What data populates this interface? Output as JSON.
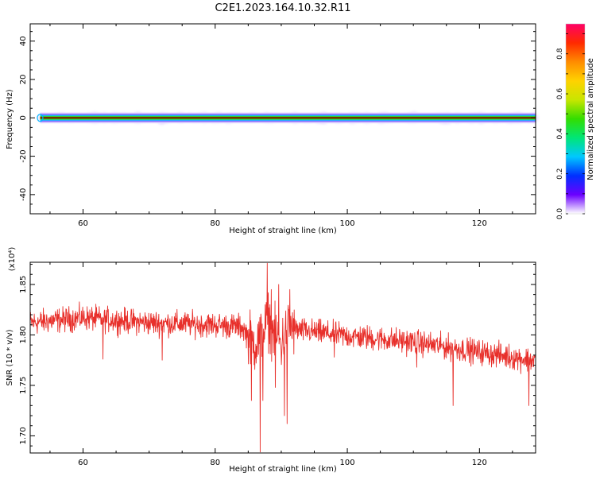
{
  "title": "C2E1.2023.164.10.32.R11",
  "colors": {
    "snr_line": "#e8302b",
    "axis": "#000000",
    "colormap": [
      "#ffffff",
      "#6b00ff",
      "#0030ff",
      "#00c8ff",
      "#00e676",
      "#33dd00",
      "#c8e600",
      "#ffd200",
      "#ff8c00",
      "#ff2a00",
      "#ff0066"
    ]
  },
  "chart_data": [
    {
      "type": "heatmap",
      "name": "spectrogram",
      "xlabel": "Height of straight line (km)",
      "ylabel": "Frequency (Hz)",
      "xlim": [
        52,
        128.5
      ],
      "ylim": [
        -50,
        49
      ],
      "xticks": [
        60,
        80,
        100,
        120
      ],
      "yticks": [
        -40,
        -20,
        0,
        20,
        40
      ],
      "x_start": 53.5,
      "x_end": 128.5,
      "ridge_frequency": 0,
      "colorbar": {
        "label": "Normalized spectral amplitude",
        "range": [
          0,
          0.95
        ],
        "ticks": [
          "0.0",
          "0.2",
          "0.4",
          "0.6",
          "0.8"
        ],
        "tick_values": [
          0.0,
          0.2,
          0.4,
          0.6,
          0.8
        ]
      }
    },
    {
      "type": "line",
      "name": "snr",
      "xlabel": "Height of straight line (km)",
      "ylabel": "SNR (10 * v/v)",
      "y_multiplier": "(x10⁴)",
      "xlim": [
        52,
        128.5
      ],
      "ylim": [
        1.683,
        1.872
      ],
      "xticks": [
        60,
        80,
        100,
        120
      ],
      "yticks": [
        "1.70",
        "1.75",
        "1.80",
        "1.85"
      ],
      "ytick_values": [
        1.7,
        1.75,
        1.8,
        1.85
      ],
      "trend": {
        "x": [
          52,
          60,
          70,
          80,
          84,
          86,
          87,
          88,
          89,
          90,
          91,
          92,
          95,
          100,
          110,
          120,
          128
        ],
        "y": [
          1.812,
          1.817,
          1.812,
          1.81,
          1.808,
          1.79,
          1.8,
          1.815,
          1.8,
          1.79,
          1.81,
          1.805,
          1.803,
          1.799,
          1.793,
          1.783,
          1.775
        ]
      },
      "noise_amplitude": 0.012,
      "spikes": [
        {
          "x": 86.8,
          "y": 1.684
        },
        {
          "x": 87.2,
          "y": 1.735
        },
        {
          "x": 87.9,
          "y": 1.871
        },
        {
          "x": 88.5,
          "y": 1.845
        },
        {
          "x": 89.1,
          "y": 1.748
        },
        {
          "x": 89.6,
          "y": 1.85
        },
        {
          "x": 90.5,
          "y": 1.72
        },
        {
          "x": 90.9,
          "y": 1.712
        },
        {
          "x": 91.3,
          "y": 1.845
        },
        {
          "x": 85.5,
          "y": 1.735
        },
        {
          "x": 63.0,
          "y": 1.776
        },
        {
          "x": 72.0,
          "y": 1.775
        },
        {
          "x": 98.0,
          "y": 1.778
        },
        {
          "x": 110.5,
          "y": 1.768
        },
        {
          "x": 116.0,
          "y": 1.73
        },
        {
          "x": 127.5,
          "y": 1.73
        }
      ]
    }
  ]
}
